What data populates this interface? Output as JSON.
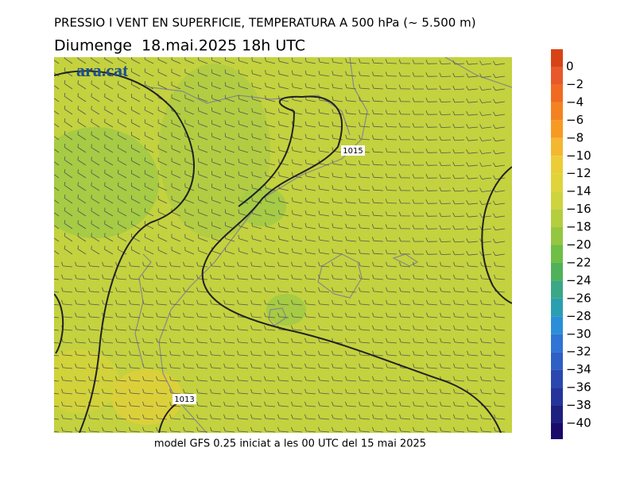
{
  "header": {
    "title": "PRESSIO I VENT EN SUPERFICIE, TEMPERATURA A 500 hPa (~ 5.500 m)",
    "subtitle": "Diumenge  18.mai.2025 18h UTC"
  },
  "map": {
    "logo": "ara.cat",
    "isobar_labels": [
      "1015",
      "1013"
    ]
  },
  "footer": "model GFS 0.25 iniciat a les 00 UTC del 15 mai 2025",
  "colorbar": {
    "labels": [
      "0",
      "−2",
      "−4",
      "−6",
      "−8",
      "−10",
      "−12",
      "−14",
      "−16",
      "−18",
      "−20",
      "−22",
      "−24",
      "−26",
      "−28",
      "−30",
      "−32",
      "−34",
      "−36",
      "−38",
      "−40"
    ],
    "colors": [
      "#d84315",
      "#e8582a",
      "#f06a22",
      "#f58220",
      "#f79a22",
      "#f3b830",
      "#eccd35",
      "#e0d43a",
      "#cdd43c",
      "#b5ce3e",
      "#95c640",
      "#6fbe45",
      "#4fb25a",
      "#3aa785",
      "#2a9fb0",
      "#2a8fd8",
      "#2f74d6",
      "#2d5fc5",
      "#2a48b0",
      "#24349a",
      "#1e2080",
      "#1a0a6a"
    ]
  }
}
